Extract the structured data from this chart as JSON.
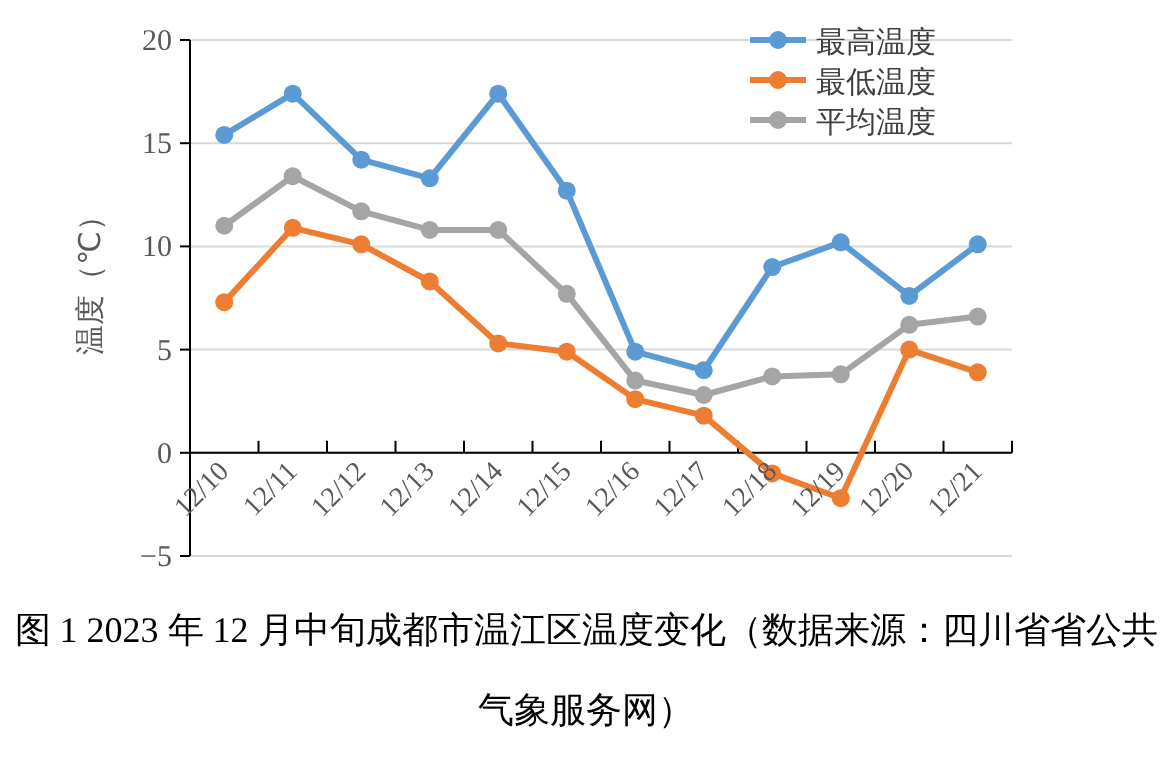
{
  "chart_data": {
    "type": "line",
    "title": "图 1 2023 年 12 月中旬成都市温江区温度变化（数据来源：四川省省公共气象服务网）",
    "ylabel": "温度（℃）",
    "categories": [
      "12/10",
      "12/11",
      "12/12",
      "12/13",
      "12/14",
      "12/15",
      "12/16",
      "12/17",
      "12/18",
      "12/19",
      "12/20",
      "12/21"
    ],
    "series": [
      {
        "name": "最高温度",
        "color": "#5b9bd5",
        "values": [
          15.4,
          17.4,
          14.2,
          13.3,
          17.4,
          12.7,
          4.9,
          4.0,
          9.0,
          10.2,
          7.6,
          10.1
        ]
      },
      {
        "name": "最低温度",
        "color": "#ed7d31",
        "values": [
          7.3,
          10.9,
          10.1,
          8.3,
          5.3,
          4.9,
          2.6,
          1.8,
          -1.0,
          -2.2,
          5.0,
          3.9
        ]
      },
      {
        "name": "平均温度",
        "color": "#a5a5a5",
        "values": [
          11.0,
          13.4,
          11.7,
          10.8,
          10.8,
          7.7,
          3.5,
          2.8,
          3.7,
          3.8,
          6.2,
          6.6
        ]
      }
    ],
    "ylim": [
      -5,
      20
    ],
    "yticks": [
      -5,
      0,
      5,
      10,
      15,
      20
    ],
    "grid": "y",
    "legend": "top right",
    "marker": "circle",
    "line_style": "solid"
  }
}
